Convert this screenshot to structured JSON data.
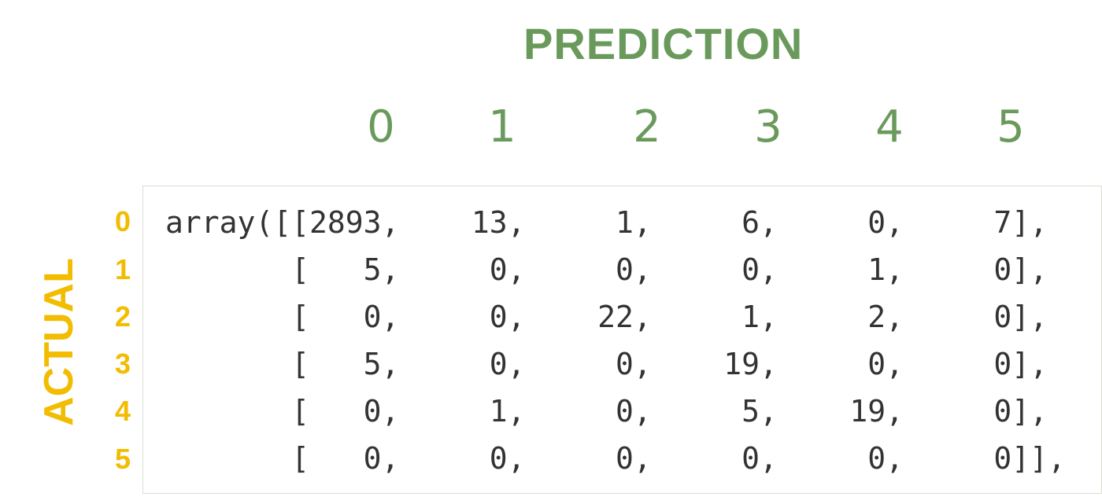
{
  "colors": {
    "prediction": "#6a9a5b",
    "actual": "#f2bc00",
    "code_text": "#333333",
    "box_border": "#d7dfcf"
  },
  "prediction_title": "PREDICTION",
  "actual_title": "ACTUAL",
  "prediction_labels": [
    "0",
    "1",
    "2",
    "3",
    "4",
    "5"
  ],
  "actual_labels": [
    "0",
    "1",
    "2",
    "3",
    "4",
    "5"
  ],
  "matrix": [
    [
      2893,
      13,
      1,
      6,
      0,
      7
    ],
    [
      5,
      0,
      0,
      0,
      1,
      0
    ],
    [
      0,
      0,
      22,
      1,
      2,
      0
    ],
    [
      5,
      0,
      0,
      19,
      0,
      0
    ],
    [
      0,
      1,
      0,
      5,
      19,
      0
    ],
    [
      0,
      0,
      0,
      0,
      0,
      0
    ]
  ],
  "code_lines": [
    "array([[2893,    13,     1,     6,     0,     7],",
    "       [   5,     0,     0,     0,     1,     0],",
    "       [   0,     0,    22,     1,     2,     0],",
    "       [   5,     0,     0,    19,     0,     0],",
    "       [   0,     1,     0,     5,    19,     0],",
    "       [   0,     0,     0,     0,     0,     0]],"
  ]
}
